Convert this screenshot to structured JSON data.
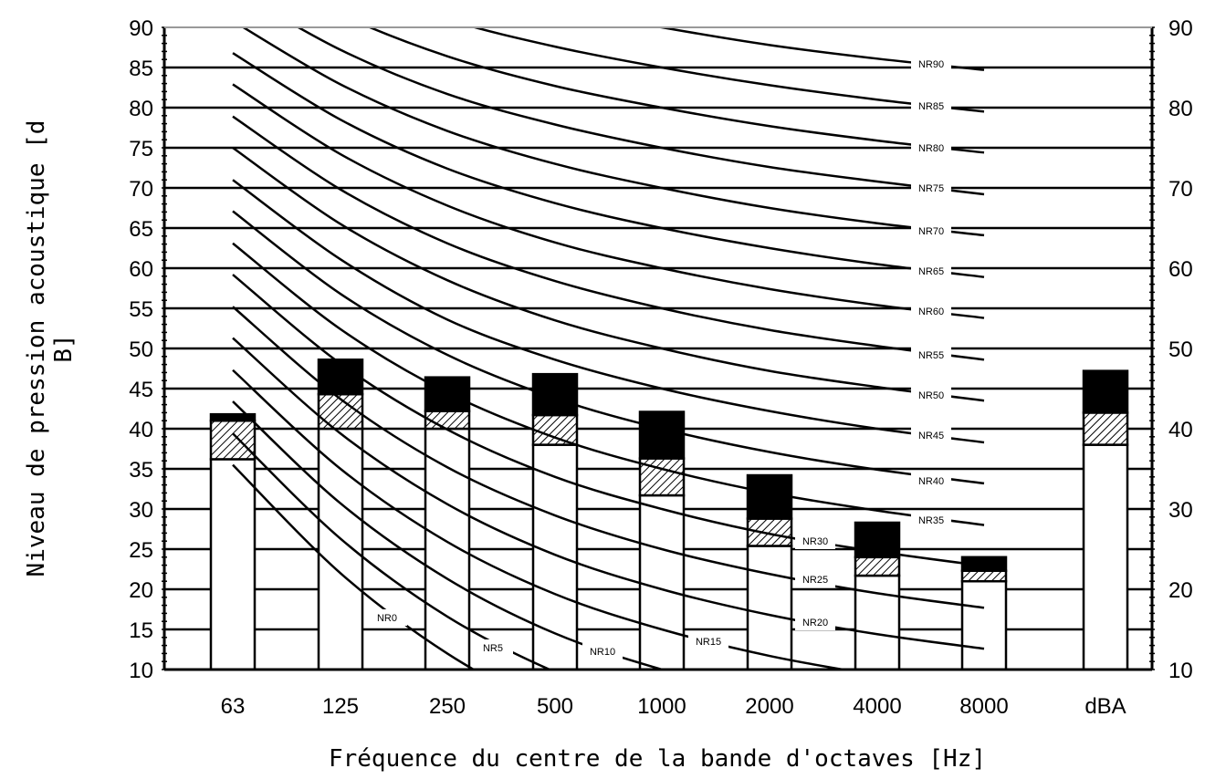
{
  "chart_data": {
    "type": "bar",
    "xlabel": "Fréquence du centre de la bande d'octaves [Hz]",
    "ylabel": "Niveau de pression acoustique [dB]",
    "ylabel_lines": [
      "Niveau de pression acoustique [d",
      "B]"
    ],
    "categories": [
      "63",
      "125",
      "250",
      "500",
      "1000",
      "2000",
      "4000",
      "8000",
      "dBA"
    ],
    "ylim": [
      10,
      90
    ],
    "left_ticks": [
      "10",
      "15",
      "20",
      "25",
      "30",
      "35",
      "40",
      "45",
      "50",
      "55",
      "60",
      "65",
      "70",
      "75",
      "80",
      "85",
      "90"
    ],
    "right_ticks": [
      "10",
      "20",
      "30",
      "40",
      "50",
      "60",
      "70",
      "80",
      "90"
    ],
    "grid": true,
    "stacked_series": [
      {
        "pattern": "white",
        "values": [
          26.2,
          30.0,
          30.0,
          28.0,
          21.7,
          15.4,
          11.7,
          11.0,
          28.0
        ]
      },
      {
        "pattern": "hatched",
        "values": [
          4.8,
          4.3,
          2.2,
          3.7,
          4.6,
          3.4,
          2.3,
          1.3,
          4.0
        ]
      },
      {
        "pattern": "black",
        "values": [
          0.8,
          4.3,
          4.2,
          5.1,
          5.8,
          5.4,
          4.3,
          1.7,
          5.2
        ]
      }
    ],
    "nr_curves": [
      {
        "name": "NR0",
        "values": [
          35.5,
          22.0,
          12.0,
          4.8,
          0.0,
          -3.5,
          -6.1,
          -8.0
        ]
      },
      {
        "name": "NR5",
        "values": [
          39.4,
          26.3,
          16.6,
          9.7,
          5.0,
          1.6,
          -1.0,
          -2.8
        ]
      },
      {
        "name": "NR10",
        "values": [
          43.4,
          30.7,
          21.3,
          14.5,
          10.0,
          6.6,
          4.2,
          2.3
        ]
      },
      {
        "name": "NR15",
        "values": [
          47.3,
          35.0,
          25.9,
          19.4,
          15.0,
          11.7,
          9.3,
          7.4
        ]
      },
      {
        "name": "NR20",
        "values": [
          51.3,
          39.4,
          30.6,
          24.3,
          20.0,
          16.8,
          14.4,
          12.6
        ]
      },
      {
        "name": "NR25",
        "values": [
          55.2,
          43.7,
          35.2,
          29.2,
          25.0,
          21.9,
          19.5,
          17.7
        ]
      },
      {
        "name": "NR30",
        "values": [
          59.2,
          48.1,
          39.9,
          34.0,
          30.0,
          26.9,
          24.7,
          22.9
        ]
      },
      {
        "name": "NR35",
        "values": [
          63.1,
          52.4,
          44.5,
          38.9,
          35.0,
          32.0,
          29.8,
          28.0
        ]
      },
      {
        "name": "NR40",
        "values": [
          67.1,
          56.8,
          49.2,
          43.8,
          40.0,
          37.1,
          34.9,
          33.2
        ]
      },
      {
        "name": "NR45",
        "values": [
          71.0,
          61.1,
          53.6,
          48.6,
          45.0,
          42.2,
          40.0,
          38.3
        ]
      },
      {
        "name": "NR50",
        "values": [
          75.0,
          65.5,
          58.5,
          53.5,
          50.0,
          47.2,
          45.2,
          43.5
        ]
      },
      {
        "name": "NR55",
        "values": [
          78.9,
          69.8,
          63.1,
          58.4,
          55.0,
          52.3,
          50.3,
          48.6
        ]
      },
      {
        "name": "NR60",
        "values": [
          82.9,
          74.2,
          67.8,
          63.2,
          60.0,
          57.4,
          55.4,
          53.8
        ]
      },
      {
        "name": "NR65",
        "values": [
          86.8,
          78.5,
          72.4,
          68.1,
          65.0,
          62.5,
          60.5,
          58.9
        ]
      },
      {
        "name": "NR70",
        "values": [
          90.8,
          82.9,
          77.1,
          73.0,
          70.0,
          67.5,
          65.6,
          64.1
        ]
      },
      {
        "name": "NR75",
        "values": [
          94.7,
          87.2,
          81.7,
          77.9,
          75.0,
          72.6,
          70.8,
          69.2
        ]
      },
      {
        "name": "NR80",
        "values": [
          98.6,
          91.6,
          86.4,
          82.7,
          80.0,
          77.7,
          75.9,
          74.4
        ]
      },
      {
        "name": "NR85",
        "values": [
          102.6,
          95.9,
          91.0,
          87.6,
          85.0,
          82.8,
          81.0,
          79.5
        ]
      },
      {
        "name": "NR90",
        "values": [
          106.5,
          100.3,
          95.7,
          92.5,
          90.0,
          87.8,
          86.1,
          84.7
        ]
      }
    ],
    "labeled_curves": [
      "NR0",
      "NR5",
      "NR10",
      "NR15",
      "NR20",
      "NR25",
      "NR30",
      "NR35",
      "NR40",
      "NR45",
      "NR50",
      "NR55",
      "NR60",
      "NR65",
      "NR70",
      "NR75",
      "NR80",
      "NR85",
      "NR90"
    ]
  }
}
